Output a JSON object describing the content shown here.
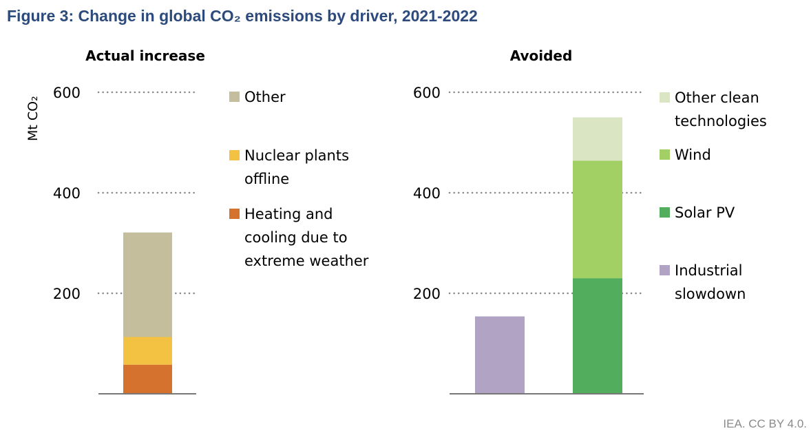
{
  "title": "Figure 3: Change in global CO₂ emissions by driver, 2021-2022",
  "footer": "IEA. CC BY 4.0.",
  "chart_data": [
    {
      "type": "bar",
      "stacked": true,
      "title": "Actual increase",
      "ylabel": "Mt CO₂",
      "ylim": [
        0,
        600
      ],
      "yticks": [
        200,
        400,
        600
      ],
      "grid": true,
      "legend_position": "right",
      "categories": [
        ""
      ],
      "series": [
        {
          "name": "Heating and cooling due to extreme weather",
          "values": [
            58
          ],
          "color": "#d4722e"
        },
        {
          "name": "Nuclear plants offline",
          "values": [
            55
          ],
          "color": "#f4c243"
        },
        {
          "name": "Other",
          "values": [
            208
          ],
          "color": "#c4be9c"
        }
      ]
    },
    {
      "type": "bar",
      "stacked": true,
      "title": "Avoided",
      "ylim": [
        0,
        600
      ],
      "yticks": [
        200,
        400,
        600
      ],
      "grid": true,
      "legend_position": "right",
      "categories": [
        "",
        ""
      ],
      "series": [
        {
          "name": "Industrial slowdown",
          "values": [
            154,
            0
          ],
          "color": "#b1a3c4"
        },
        {
          "name": "Solar PV",
          "values": [
            0,
            230
          ],
          "color": "#52ad5c"
        },
        {
          "name": "Wind",
          "values": [
            0,
            234
          ],
          "color": "#a2d064"
        },
        {
          "name": "Other clean technologies",
          "values": [
            0,
            86
          ],
          "color": "#d9e5c3"
        }
      ]
    }
  ]
}
